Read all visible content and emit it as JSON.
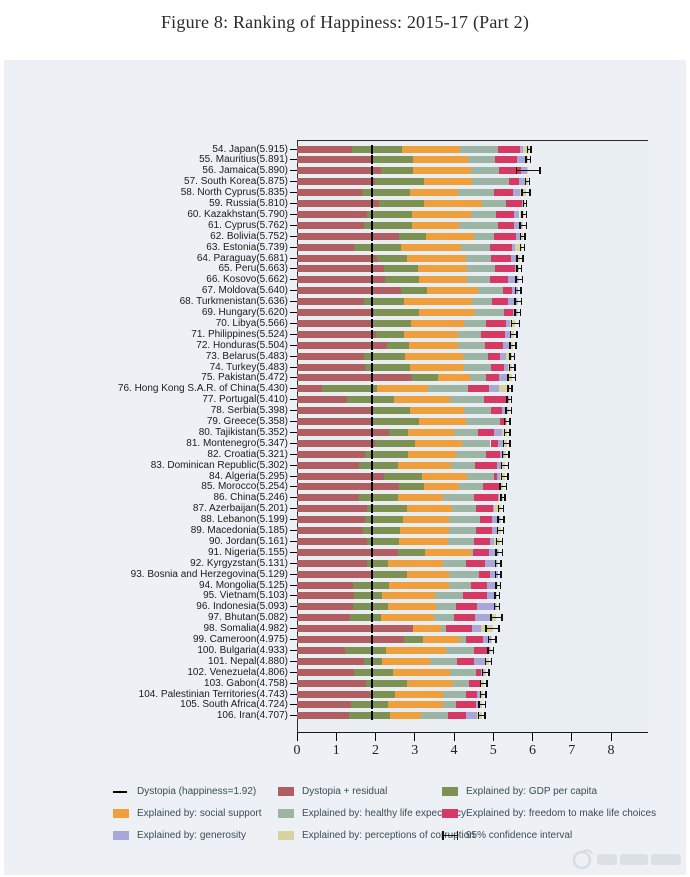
{
  "title": "Figure 8: Ranking of Happiness: 2015-17 (Part 2)",
  "colors": {
    "residual": "#b15e62",
    "gdp": "#7d9152",
    "social": "#efa03d",
    "health": "#9cb4a4",
    "freedom": "#d63a64",
    "generosity": "#a9a6da",
    "corruption": "#d9d3a0",
    "ci": "#111111",
    "dystopia_line": "#000000",
    "panel_bg": "#edf1f5",
    "plot_bg": "#e9eef2",
    "grid": "#ffffff"
  },
  "legend": {
    "items": [
      {
        "swatch": "line",
        "label": "Dystopia (happiness=1.92)"
      },
      {
        "swatch": "box",
        "color_key": "residual",
        "label": "Dystopia + residual"
      },
      {
        "swatch": "box",
        "color_key": "gdp",
        "label": "Explained by: GDP per capita"
      },
      {
        "swatch": "box",
        "color_key": "social",
        "label": "Explained by: social support"
      },
      {
        "swatch": "box",
        "color_key": "health",
        "label": "Explained by: healthy life expectancy"
      },
      {
        "swatch": "box",
        "color_key": "freedom",
        "label": "Explained by: freedom to make life choices"
      },
      {
        "swatch": "box",
        "color_key": "generosity",
        "label": "Explained by: generosity"
      },
      {
        "swatch": "box",
        "color_key": "corruption",
        "label": "Explained by: perceptions of corruption"
      },
      {
        "swatch": "ci",
        "label": "95% confidence interval"
      }
    ]
  },
  "chart_data": {
    "type": "bar",
    "orientation": "horizontal",
    "stacked": true,
    "title": "Figure 8: Ranking of Happiness: 2015-17 (Part 2)",
    "xlabel": "",
    "ylabel": "",
    "xlim": [
      0,
      8.94
    ],
    "x_ticks": [
      0,
      1,
      2,
      3,
      4,
      5,
      6,
      7,
      8
    ],
    "grid": "horizontal-white",
    "dystopia_baseline": 1.92,
    "segment_order": [
      "dystopia_plus_residual",
      "gdp",
      "social",
      "health",
      "freedom",
      "generosity",
      "corruption"
    ],
    "series_names": [
      "Explained by: GDP per capita",
      "Explained by: social support",
      "Explained by: healthy life expectancy",
      "Explained by: freedom to make life choices",
      "Explained by: generosity",
      "Explained by: perceptions of corruption"
    ],
    "note": "values = [gdp, social, health, freedom, generosity, corruption]; dystopia_plus_residual = score - sum(values); ci = 95% confidence half-width",
    "countries": [
      {
        "rank": 54,
        "name": "Japan",
        "score": 5.915,
        "values": [
          1.294,
          1.462,
          0.988,
          0.553,
          0.079,
          0.15
        ],
        "ci": 0.06
      },
      {
        "rank": 55,
        "name": "Mauritius",
        "score": 5.891,
        "values": [
          1.09,
          1.387,
          0.684,
          0.558,
          0.245,
          0.05
        ],
        "ci": 0.08
      },
      {
        "rank": 56,
        "name": "Jamaica",
        "score": 5.89,
        "values": [
          0.819,
          1.493,
          0.697,
          0.575,
          0.147,
          0.028
        ],
        "ci": 0.32
      },
      {
        "rank": 57,
        "name": "South Korea",
        "score": 5.875,
        "values": [
          1.266,
          1.204,
          0.955,
          0.244,
          0.175,
          0.051
        ],
        "ci": 0.07
      },
      {
        "rank": 58,
        "name": "North Cyprus",
        "score": 5.835,
        "values": [
          1.229,
          1.211,
          0.909,
          0.495,
          0.179,
          0.154
        ],
        "ci": 0.12
      },
      {
        "rank": 59,
        "name": "Russia",
        "score": 5.81,
        "values": [
          1.151,
          1.479,
          0.599,
          0.399,
          0.065,
          0.025
        ],
        "ci": 0.06
      },
      {
        "rank": 60,
        "name": "Kazakhstan",
        "score": 5.79,
        "values": [
          1.143,
          1.516,
          0.631,
          0.454,
          0.148,
          0.121
        ],
        "ci": 0.08
      },
      {
        "rank": 61,
        "name": "Cyprus",
        "score": 5.762,
        "values": [
          1.229,
          1.191,
          0.999,
          0.406,
          0.19,
          0.041
        ],
        "ci": 0.1
      },
      {
        "rank": 62,
        "name": "Bolivia",
        "score": 5.752,
        "values": [
          0.689,
          1.209,
          0.509,
          0.559,
          0.107,
          0.075
        ],
        "ci": 0.08
      },
      {
        "rank": 63,
        "name": "Estonia",
        "score": 5.739,
        "values": [
          1.2,
          1.532,
          0.737,
          0.553,
          0.086,
          0.174
        ],
        "ci": 0.07
      },
      {
        "rank": 64,
        "name": "Paraguay",
        "score": 5.681,
        "values": [
          0.757,
          1.514,
          0.617,
          0.514,
          0.184,
          0.052
        ],
        "ci": 0.09
      },
      {
        "rank": 65,
        "name": "Peru",
        "score": 5.663,
        "values": [
          0.863,
          1.249,
          0.735,
          0.492,
          0.079,
          0.035
        ],
        "ci": 0.08
      },
      {
        "rank": 66,
        "name": "Kosovo",
        "score": 5.662,
        "values": [
          0.855,
          1.23,
          0.578,
          0.448,
          0.274,
          0.023
        ],
        "ci": 0.1
      },
      {
        "rank": 67,
        "name": "Moldova",
        "score": 5.64,
        "values": [
          0.657,
          1.301,
          0.62,
          0.232,
          0.171,
          0.0
        ],
        "ci": 0.09
      },
      {
        "rank": 68,
        "name": "Turkmenistan",
        "score": 5.636,
        "values": [
          1.024,
          1.719,
          0.516,
          0.394,
          0.244,
          0.028
        ],
        "ci": 0.1
      },
      {
        "rank": 69,
        "name": "Hungary",
        "score": 5.62,
        "values": [
          1.147,
          1.402,
          0.744,
          0.234,
          0.1,
          0.02
        ],
        "ci": 0.09
      },
      {
        "rank": 70,
        "name": "Libya",
        "score": 5.566,
        "values": [
          0.985,
          1.35,
          0.553,
          0.495,
          0.117,
          0.135
        ],
        "ci": 0.12
      },
      {
        "rank": 71,
        "name": "Philippines",
        "score": 5.524,
        "values": [
          0.712,
          1.365,
          0.599,
          0.613,
          0.12,
          0.1
        ],
        "ci": 0.1
      },
      {
        "rank": 72,
        "name": "Honduras",
        "score": 5.504,
        "values": [
          0.568,
          1.252,
          0.675,
          0.454,
          0.187,
          0.079
        ],
        "ci": 0.1
      },
      {
        "rank": 73,
        "name": "Belarus",
        "score": 5.483,
        "values": [
          1.039,
          1.483,
          0.647,
          0.295,
          0.155,
          0.156
        ],
        "ci": 0.08
      },
      {
        "rank": 74,
        "name": "Turkey",
        "score": 5.483,
        "values": [
          1.148,
          1.38,
          0.686,
          0.324,
          0.106,
          0.109
        ],
        "ci": 0.09
      },
      {
        "rank": 75,
        "name": "Pakistan",
        "score": 5.472,
        "values": [
          0.652,
          0.81,
          0.424,
          0.334,
          0.216,
          0.098
        ],
        "ci": 0.12
      },
      {
        "rank": 76,
        "name": "Hong Kong S.A.R. of China",
        "score": 5.43,
        "values": [
          1.405,
          1.29,
          1.03,
          0.524,
          0.246,
          0.291
        ],
        "ci": 0.07
      },
      {
        "rank": 77,
        "name": "Portugal",
        "score": 5.41,
        "values": [
          1.188,
          1.429,
          0.884,
          0.562,
          0.055,
          0.017
        ],
        "ci": 0.08
      },
      {
        "rank": 78,
        "name": "Serbia",
        "score": 5.398,
        "values": [
          0.975,
          1.369,
          0.685,
          0.288,
          0.134,
          0.043
        ],
        "ci": 0.09
      },
      {
        "rank": 79,
        "name": "Greece",
        "score": 5.358,
        "values": [
          1.154,
          1.202,
          0.879,
          0.131,
          0.0,
          0.044
        ],
        "ci": 0.09
      },
      {
        "rank": 80,
        "name": "Tajikistan",
        "score": 5.352,
        "values": [
          0.474,
          1.18,
          0.598,
          0.42,
          0.206,
          0.12
        ],
        "ci": 0.09
      },
      {
        "rank": 81,
        "name": "Montenegro",
        "score": 5.347,
        "values": [
          1.014,
          1.201,
          0.731,
          0.2,
          0.142,
          0.075
        ],
        "ci": 0.1
      },
      {
        "rank": 82,
        "name": "Croatia",
        "score": 5.321,
        "values": [
          1.078,
          1.223,
          0.779,
          0.342,
          0.119,
          0.039
        ],
        "ci": 0.1
      },
      {
        "rank": 83,
        "name": "Dominican Republic",
        "score": 5.302,
        "values": [
          0.982,
          1.348,
          0.629,
          0.549,
          0.112,
          0.097
        ],
        "ci": 0.11
      },
      {
        "rank": 84,
        "name": "Algeria",
        "score": 5.295,
        "values": [
          0.979,
          1.154,
          0.687,
          0.077,
          0.055,
          0.135
        ],
        "ci": 0.1
      },
      {
        "rank": 85,
        "name": "Morocco",
        "score": 5.254,
        "values": [
          0.636,
          0.905,
          0.598,
          0.418,
          0.032,
          0.075
        ],
        "ci": 0.1
      },
      {
        "rank": 86,
        "name": "China",
        "score": 5.246,
        "values": [
          0.989,
          1.142,
          0.799,
          0.597,
          0.029,
          0.103
        ],
        "ci": 0.07
      },
      {
        "rank": 87,
        "name": "Azerbaijan",
        "score": 5.201,
        "values": [
          1.024,
          1.161,
          0.603,
          0.43,
          0.035,
          0.177
        ],
        "ci": 0.08
      },
      {
        "rank": 88,
        "name": "Lebanon",
        "score": 5.199,
        "values": [
          0.965,
          1.174,
          0.785,
          0.288,
          0.216,
          0.027
        ],
        "ci": 0.1
      },
      {
        "rank": 89,
        "name": "Macedonia",
        "score": 5.185,
        "values": [
          0.959,
          1.239,
          0.691,
          0.394,
          0.173,
          0.052
        ],
        "ci": 0.1
      },
      {
        "rank": 90,
        "name": "Jordan",
        "score": 5.161,
        "values": [
          0.822,
          1.265,
          0.645,
          0.417,
          0.11,
          0.13
        ],
        "ci": 0.1
      },
      {
        "rank": 91,
        "name": "Nigeria",
        "score": 5.155,
        "values": [
          0.689,
          1.172,
          0.043,
          0.426,
          0.215,
          0.041
        ],
        "ci": 0.1
      },
      {
        "rank": 92,
        "name": "Kyrgyzstan",
        "score": 5.131,
        "values": [
          0.53,
          1.4,
          0.591,
          0.469,
          0.303,
          0.044
        ],
        "ci": 0.09
      },
      {
        "rank": 93,
        "name": "Bosnia and Herzegovina",
        "score": 5.129,
        "values": [
          0.915,
          1.078,
          0.758,
          0.28,
          0.216,
          0.0
        ],
        "ci": 0.09
      },
      {
        "rank": 94,
        "name": "Mongolia",
        "score": 5.125,
        "values": [
          0.914,
          1.517,
          0.575,
          0.395,
          0.253,
          0.032
        ],
        "ci": 0.08
      },
      {
        "rank": 95,
        "name": "Vietnam",
        "score": 5.103,
        "values": [
          0.715,
          1.365,
          0.702,
          0.618,
          0.177,
          0.079
        ],
        "ci": 0.08
      },
      {
        "rank": 96,
        "name": "Indonesia",
        "score": 5.093,
        "values": [
          0.899,
          1.215,
          0.522,
          0.538,
          0.484,
          0.018
        ],
        "ci": 0.08
      },
      {
        "rank": 97,
        "name": "Bhutan",
        "score": 5.082,
        "values": [
          0.796,
          1.335,
          0.527,
          0.541,
          0.364,
          0.171
        ],
        "ci": 0.16
      },
      {
        "rank": 98,
        "name": "Somalia",
        "score": 4.982,
        "values": [
          0.0,
          0.712,
          0.115,
          0.674,
          0.238,
          0.282
        ],
        "ci": 0.18
      },
      {
        "rank": 99,
        "name": "Cameroon",
        "score": 4.975,
        "values": [
          0.49,
          0.935,
          0.141,
          0.433,
          0.21,
          0.034
        ],
        "ci": 0.12
      },
      {
        "rank": 100,
        "name": "Bulgaria",
        "score": 4.933,
        "values": [
          1.054,
          1.515,
          0.712,
          0.359,
          0.064,
          0.009
        ],
        "ci": 0.09
      },
      {
        "rank": 101,
        "name": "Nepal",
        "score": 4.88,
        "values": [
          0.446,
          1.226,
          0.677,
          0.439,
          0.285,
          0.089
        ],
        "ci": 0.1
      },
      {
        "rank": 102,
        "name": "Venezuela",
        "score": 4.806,
        "values": [
          0.996,
          1.469,
          0.657,
          0.133,
          0.056,
          0.052
        ],
        "ci": 0.1
      },
      {
        "rank": 103,
        "name": "Gabon",
        "score": 4.758,
        "values": [
          1.036,
          1.164,
          0.415,
          0.27,
          0.028,
          0.078
        ],
        "ci": 0.1
      },
      {
        "rank": 104,
        "name": "Palestinian Territories",
        "score": 4.743,
        "values": [
          0.642,
          1.217,
          0.602,
          0.266,
          0.086,
          0.076
        ],
        "ci": 0.09
      },
      {
        "rank": 105,
        "name": "South Africa",
        "score": 4.724,
        "values": [
          0.94,
          1.41,
          0.33,
          0.516,
          0.103,
          0.056
        ],
        "ci": 0.1
      },
      {
        "rank": 106,
        "name": "Iran",
        "score": 4.707,
        "values": [
          1.059,
          0.771,
          0.691,
          0.459,
          0.282,
          0.125
        ],
        "ci": 0.1
      }
    ]
  }
}
